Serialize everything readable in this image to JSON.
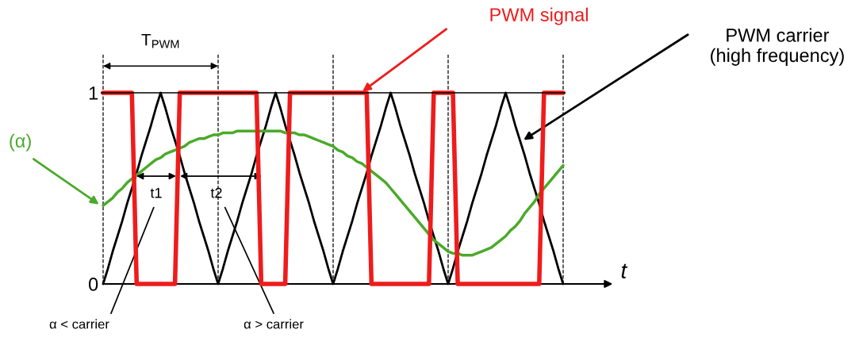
{
  "chart_data": {
    "type": "line",
    "xlabel": "t",
    "ylim": [
      0,
      1.2
    ],
    "yticks": [
      0,
      1
    ],
    "tick_labels": "y",
    "legend": false,
    "grid": "x",
    "marker": "none",
    "line_style": "solid",
    "categories": [
      null,
      null,
      null,
      null,
      null,
      null,
      null,
      null,
      null,
      null,
      null,
      null,
      null,
      null,
      null,
      null,
      null,
      null,
      null,
      null,
      null,
      null,
      null,
      null,
      null,
      null,
      null,
      null,
      null,
      null,
      null,
      null,
      null,
      null,
      null,
      null,
      null,
      null,
      null,
      null,
      null,
      null,
      null,
      null,
      null,
      null,
      null,
      null,
      null,
      null,
      null,
      null,
      null,
      null,
      null,
      null,
      null,
      null,
      null,
      null,
      null,
      null,
      null,
      null,
      null,
      null,
      null,
      null,
      null,
      null,
      null,
      null,
      null,
      null,
      null,
      null,
      null,
      null,
      null,
      null,
      null,
      null,
      null,
      null,
      null,
      null,
      null,
      null,
      null,
      null,
      null,
      null,
      null,
      null,
      null,
      null,
      null
    ],
    "series": [
      {
        "name": "PWM carrier\n(high frequency)",
        "color": "#000000",
        "values": [
          0,
          0.08,
          0.17,
          0.25,
          0.33,
          0.42,
          0.5,
          0.58,
          0.67,
          0.75,
          0.83,
          0.92,
          1,
          0.92,
          0.83,
          0.75,
          0.67,
          0.58,
          0.5,
          0.42,
          0.33,
          0.25,
          0.17,
          0.08,
          0,
          0.08,
          0.17,
          0.25,
          0.33,
          0.42,
          0.5,
          0.58,
          0.67,
          0.75,
          0.83,
          0.92,
          1,
          0.92,
          0.83,
          0.75,
          0.67,
          0.58,
          0.5,
          0.42,
          0.33,
          0.25,
          0.17,
          0.08,
          0,
          0.08,
          0.17,
          0.25,
          0.33,
          0.42,
          0.5,
          0.58,
          0.67,
          0.75,
          0.83,
          0.92,
          1,
          0.92,
          0.83,
          0.75,
          0.67,
          0.58,
          0.5,
          0.42,
          0.33,
          0.25,
          0.17,
          0.08,
          0,
          0.08,
          0.17,
          0.25,
          0.33,
          0.42,
          0.5,
          0.58,
          0.67,
          0.75,
          0.83,
          0.92,
          1,
          0.92,
          0.83,
          0.75,
          0.67,
          0.58,
          0.5,
          0.42,
          0.33,
          0.25,
          0.17,
          0.08,
          0
        ]
      },
      {
        "name": "PWM signal",
        "color": "#ee1c1c",
        "values": [
          1,
          1,
          1,
          1,
          1,
          1,
          1,
          0,
          0,
          0,
          0,
          0,
          0,
          0,
          0,
          0,
          1,
          1,
          1,
          1,
          1,
          1,
          1,
          1,
          1,
          1,
          1,
          1,
          1,
          1,
          1,
          1,
          1,
          0,
          0,
          0,
          0,
          0,
          0,
          1,
          1,
          1,
          1,
          1,
          1,
          1,
          1,
          1,
          1,
          1,
          1,
          1,
          1,
          1,
          1,
          1,
          0,
          0,
          0,
          0,
          0,
          0,
          0,
          0,
          0,
          0,
          0,
          0,
          0,
          1,
          1,
          1,
          1,
          1,
          0,
          0,
          0,
          0,
          0,
          0,
          0,
          0,
          0,
          0,
          0,
          0,
          0,
          0,
          0,
          0,
          0,
          0,
          1,
          1,
          1,
          1,
          1
        ]
      },
      {
        "name": "(α)",
        "color": "#4aaa2a",
        "values": [
          0.41,
          0.43,
          0.45,
          0.48,
          0.5,
          0.53,
          0.55,
          0.57,
          0.59,
          0.61,
          0.63,
          0.65,
          0.66,
          0.68,
          0.69,
          0.7,
          0.71,
          0.72,
          0.74,
          0.75,
          0.76,
          0.76,
          0.77,
          0.78,
          0.78,
          0.79,
          0.79,
          0.79,
          0.8,
          0.8,
          0.8,
          0.8,
          0.8,
          0.8,
          0.8,
          0.8,
          0.8,
          0.8,
          0.79,
          0.79,
          0.79,
          0.78,
          0.78,
          0.77,
          0.76,
          0.75,
          0.74,
          0.73,
          0.72,
          0.7,
          0.69,
          0.67,
          0.66,
          0.64,
          0.63,
          0.61,
          0.59,
          0.57,
          0.55,
          0.53,
          0.5,
          0.47,
          0.44,
          0.41,
          0.38,
          0.35,
          0.32,
          0.29,
          0.26,
          0.23,
          0.21,
          0.19,
          0.17,
          0.16,
          0.16,
          0.15,
          0.15,
          0.15,
          0.16,
          0.17,
          0.18,
          0.19,
          0.21,
          0.23,
          0.25,
          0.28,
          0.3,
          0.33,
          0.37,
          0.4,
          0.43,
          0.47,
          0.5,
          0.53,
          0.56,
          0.59,
          0.62
        ]
      }
    ],
    "ref_lines": [
      {
        "axis": "y",
        "value": 1,
        "color": "#000000",
        "line_style": "solid"
      }
    ],
    "annotations": [
      "T$_{PWM}$",
      "t1",
      "t2",
      "α < carrier",
      "α > carrier"
    ]
  }
}
